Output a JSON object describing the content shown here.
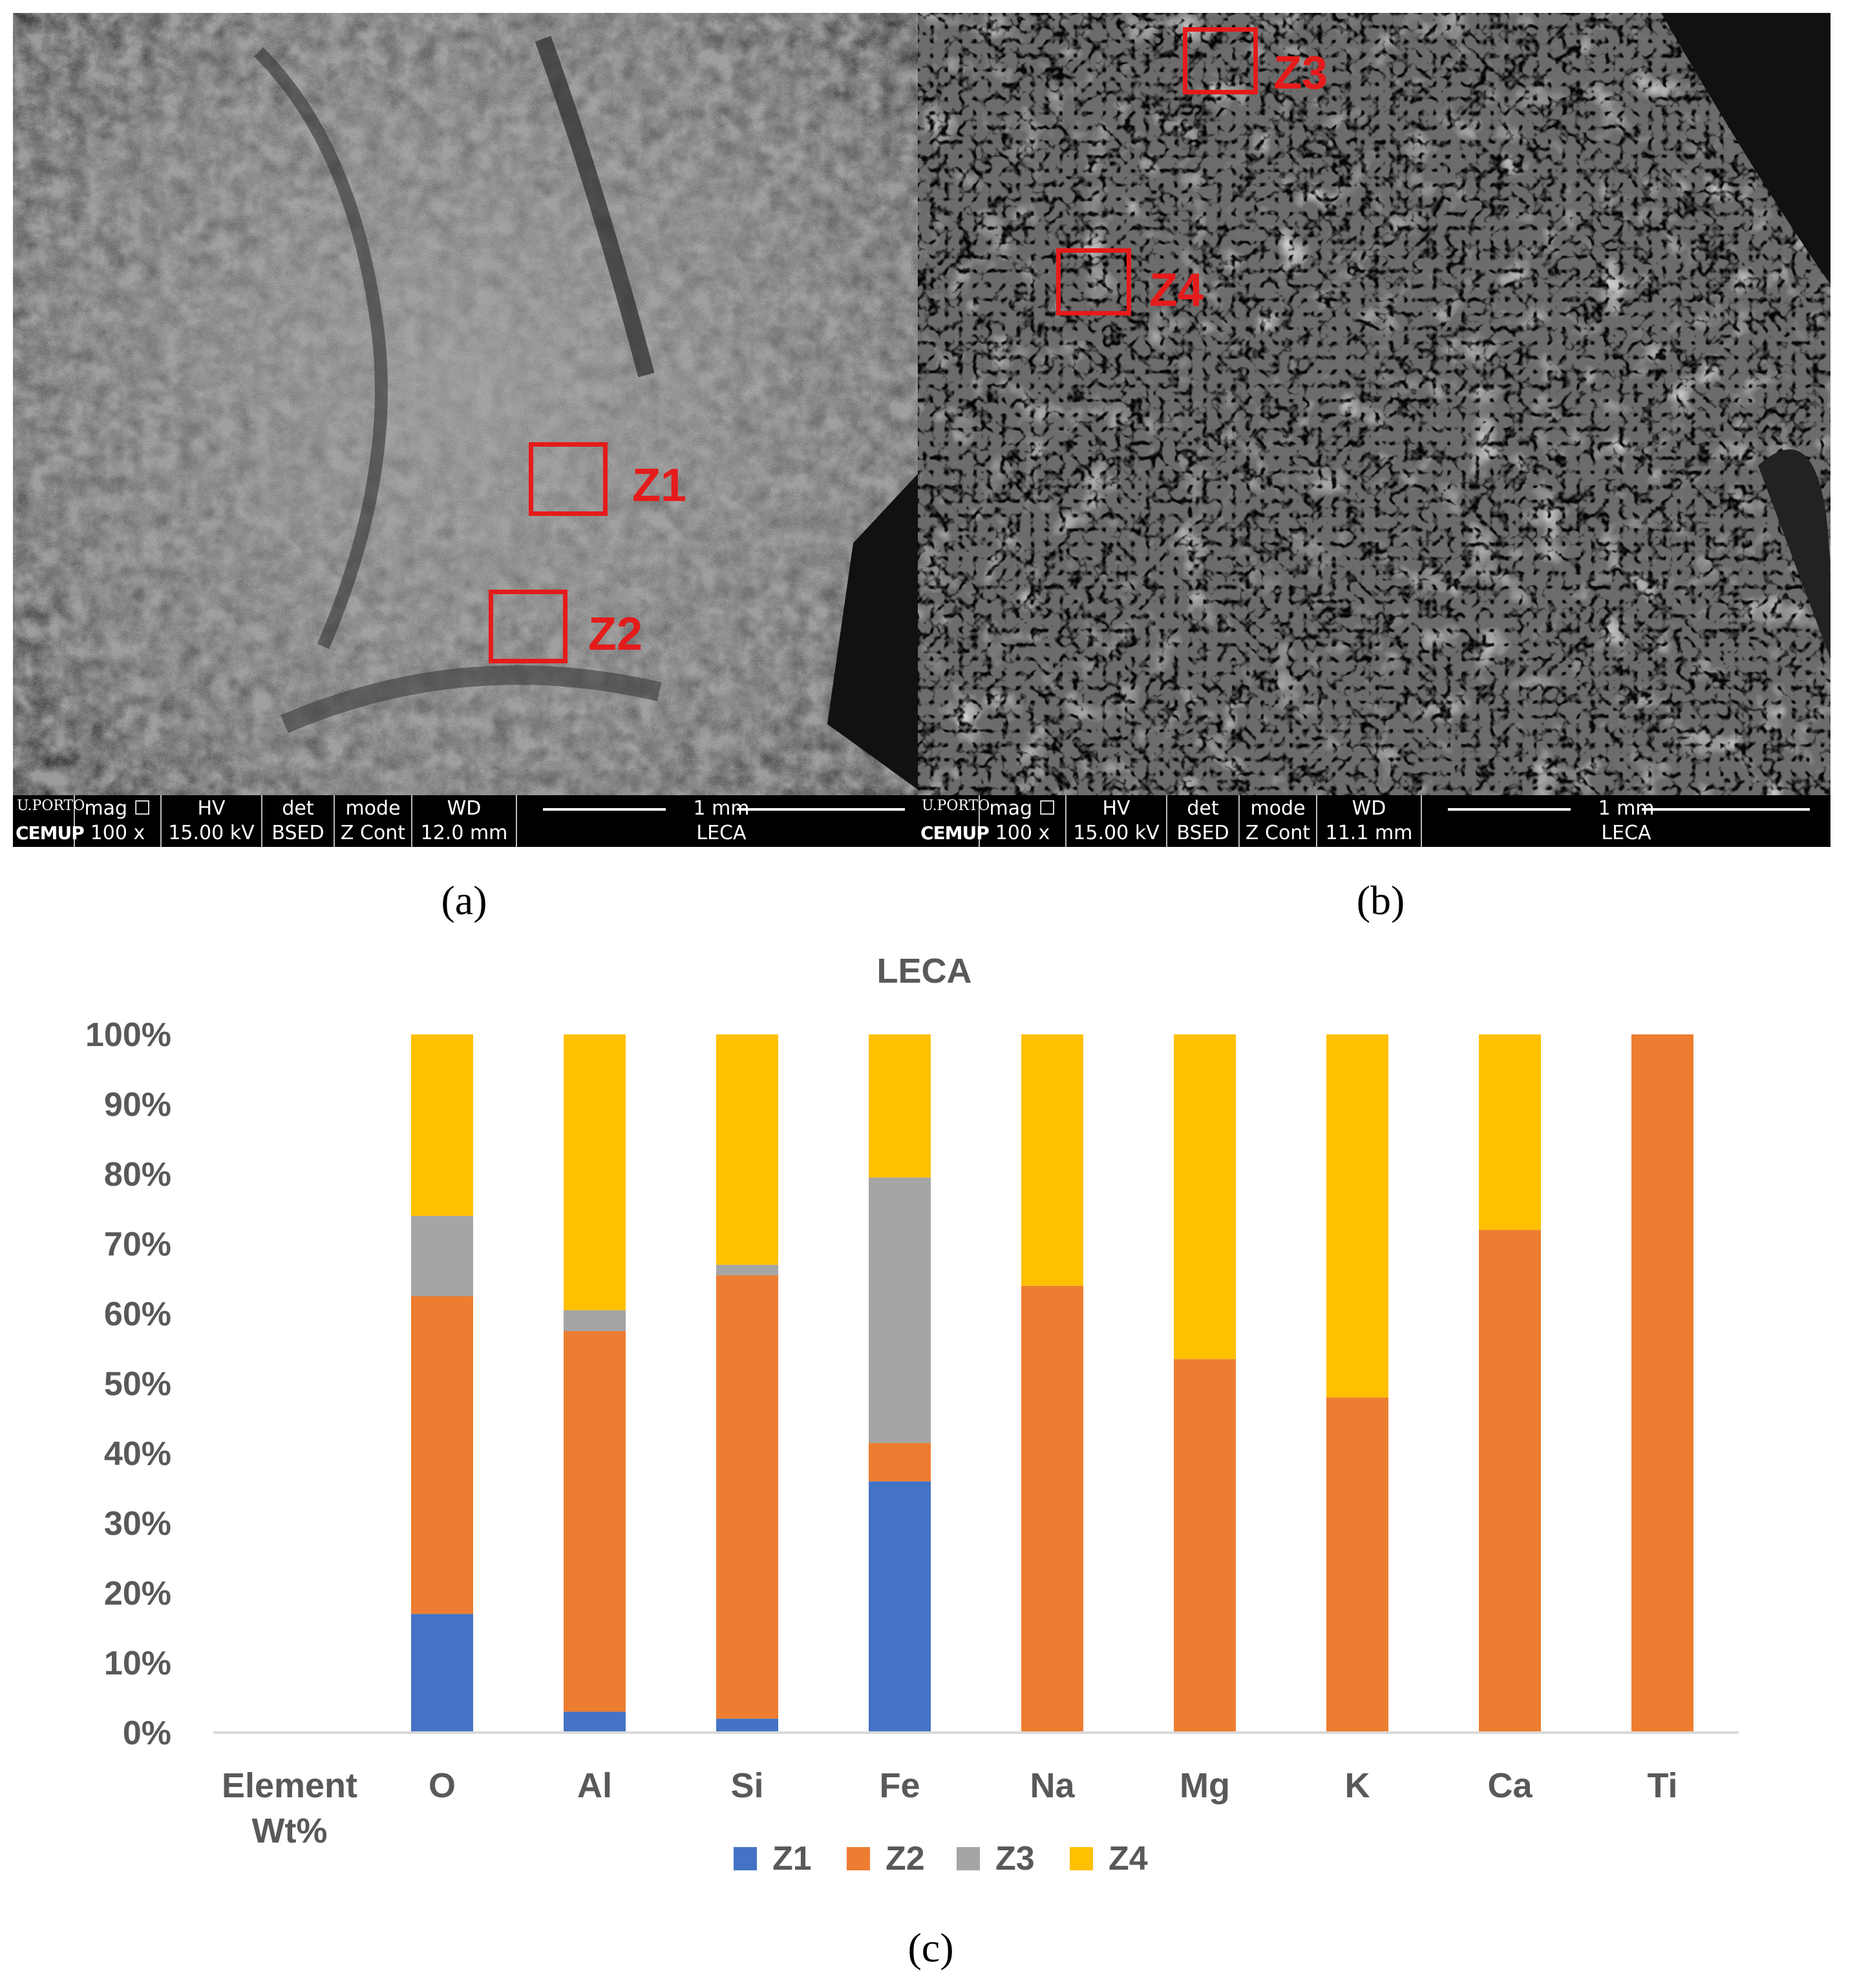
{
  "panels": {
    "a": {
      "label": "(a)",
      "zones": [
        {
          "label": "Z1"
        },
        {
          "label": "Z2"
        }
      ],
      "info": {
        "logo_top": "U.PORTO",
        "logo_bottom": "CEMUP",
        "mag_header": "mag ☐",
        "mag_value": "100 x",
        "hv_header": "HV",
        "hv_value": "15.00 kV",
        "det_header": "det",
        "det_value": "BSED",
        "mode_header": "mode",
        "mode_value": "Z Cont",
        "wd_header": "WD",
        "wd_value": "12.0 mm",
        "scale_label": "1 mm",
        "sample": "LECA"
      }
    },
    "b": {
      "label": "(b)",
      "zones": [
        {
          "label": "Z3"
        },
        {
          "label": "Z4"
        }
      ],
      "info": {
        "logo_top": "U.PORTO",
        "logo_bottom": "CEMUP",
        "mag_header": "mag ☐",
        "mag_value": "100 x",
        "hv_header": "HV",
        "hv_value": "15.00 kV",
        "det_header": "det",
        "det_value": "BSED",
        "mode_header": "mode",
        "mode_value": "Z Cont",
        "wd_header": "WD",
        "wd_value": "11.1 mm",
        "scale_label": "1 mm",
        "sample": "LECA"
      }
    },
    "c": {
      "label": "(c)"
    }
  },
  "chart_data": {
    "type": "bar",
    "stacked": "percent",
    "title": "LECA",
    "categories": [
      "Element Wt%",
      "O",
      "Al",
      "Si",
      "Fe",
      "Na",
      "Mg",
      "K",
      "Ca",
      "Ti"
    ],
    "series": [
      {
        "name": "Z1",
        "color": "#4472c4",
        "values": [
          0,
          17,
          3,
          2,
          36,
          0,
          0,
          0,
          0,
          0
        ]
      },
      {
        "name": "Z2",
        "color": "#ed7d31",
        "values": [
          0,
          45.5,
          54.5,
          63.5,
          5.5,
          64,
          53.5,
          48,
          72,
          100
        ]
      },
      {
        "name": "Z3",
        "color": "#a5a5a5",
        "values": [
          0,
          11.5,
          3,
          1.5,
          38,
          0,
          0,
          0,
          0,
          0
        ]
      },
      {
        "name": "Z4",
        "color": "#ffc000",
        "values": [
          0,
          26,
          39.5,
          33,
          20.5,
          36,
          46.5,
          52,
          28,
          0
        ]
      }
    ],
    "ylim": [
      0,
      100
    ],
    "yticks": [
      "0%",
      "10%",
      "20%",
      "30%",
      "40%",
      "50%",
      "60%",
      "70%",
      "80%",
      "90%",
      "100%"
    ],
    "legend_position": "bottom"
  }
}
